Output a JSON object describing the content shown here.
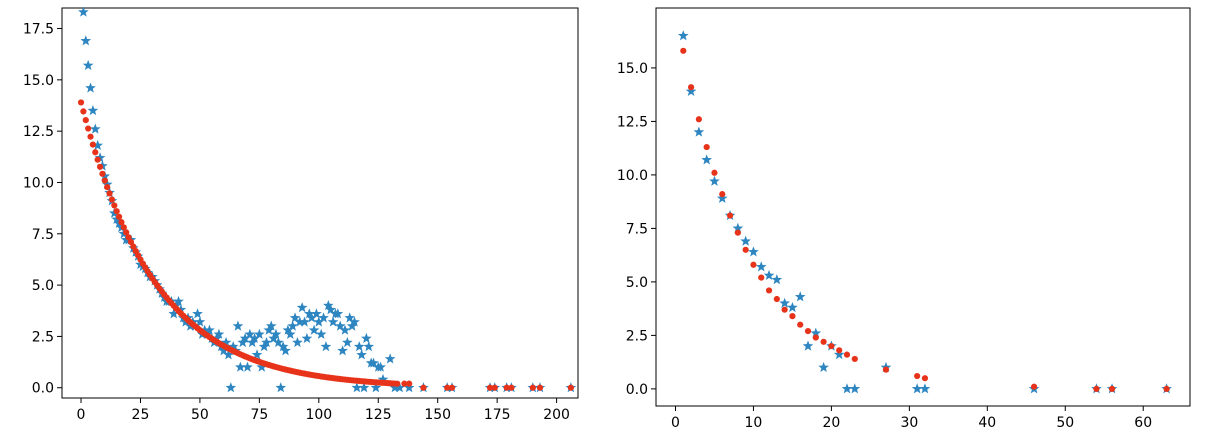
{
  "colors": {
    "series_a": "#2e86c1",
    "series_b": "#e8331b"
  },
  "chart_data": [
    {
      "type": "scatter",
      "xlim": [
        -8,
        209
      ],
      "ylim": [
        -0.5,
        18.5
      ],
      "xticks": [
        0,
        25,
        50,
        75,
        100,
        125,
        150,
        175,
        200
      ],
      "yticks": [
        0.0,
        2.5,
        5.0,
        7.5,
        10.0,
        12.5,
        15.0,
        17.5
      ],
      "xtick_labels": [
        "0",
        "25",
        "50",
        "75",
        "100",
        "125",
        "150",
        "175",
        "200"
      ],
      "ytick_labels": [
        "0.0",
        "2.5",
        "5.0",
        "7.5",
        "10.0",
        "12.5",
        "15.0",
        "17.5"
      ],
      "series": [
        {
          "marker": "star",
          "color": "#2e86c1",
          "points": [
            [
              1,
              18.3
            ],
            [
              2,
              16.9
            ],
            [
              3,
              15.7
            ],
            [
              4,
              14.6
            ],
            [
              5,
              13.5
            ],
            [
              6,
              12.6
            ],
            [
              7,
              11.8
            ],
            [
              8,
              11.2
            ],
            [
              9,
              10.8
            ],
            [
              10,
              10.3
            ],
            [
              11,
              9.9
            ],
            [
              12,
              9.5
            ],
            [
              13,
              9.1
            ],
            [
              14,
              8.5
            ],
            [
              15,
              8.2
            ],
            [
              16,
              8.0
            ],
            [
              17,
              7.8
            ],
            [
              18,
              7.5
            ],
            [
              19,
              7.2
            ],
            [
              20,
              7.2
            ],
            [
              21,
              7.2
            ],
            [
              22,
              6.8
            ],
            [
              23,
              6.6
            ],
            [
              24,
              6.4
            ],
            [
              25,
              6.0
            ],
            [
              26,
              5.9
            ],
            [
              27,
              5.8
            ],
            [
              28,
              5.6
            ],
            [
              29,
              5.4
            ],
            [
              30,
              5.4
            ],
            [
              31,
              5.2
            ],
            [
              32,
              5.0
            ],
            [
              33,
              4.8
            ],
            [
              34,
              4.6
            ],
            [
              35,
              4.4
            ],
            [
              36,
              4.2
            ],
            [
              37,
              4.2
            ],
            [
              38,
              4.2
            ],
            [
              39,
              3.6
            ],
            [
              40,
              4.0
            ],
            [
              41,
              4.2
            ],
            [
              42,
              3.8
            ],
            [
              43,
              3.4
            ],
            [
              44,
              3.2
            ],
            [
              45,
              3.4
            ],
            [
              46,
              3.0
            ],
            [
              47,
              3.2
            ],
            [
              48,
              3.0
            ],
            [
              49,
              3.6
            ],
            [
              50,
              3.2
            ],
            [
              51,
              2.6
            ],
            [
              52,
              2.8
            ],
            [
              53,
              2.6
            ],
            [
              54,
              2.8
            ],
            [
              55,
              2.4
            ],
            [
              56,
              2.2
            ],
            [
              57,
              2.4
            ],
            [
              58,
              2.6
            ],
            [
              59,
              2.0
            ],
            [
              60,
              1.8
            ],
            [
              61,
              2.2
            ],
            [
              62,
              1.6
            ],
            [
              63,
              0.0
            ],
            [
              64,
              2.0
            ],
            [
              65,
              1.8
            ],
            [
              66,
              3.0
            ],
            [
              67,
              1.0
            ],
            [
              68,
              2.2
            ],
            [
              69,
              2.4
            ],
            [
              70,
              1.0
            ],
            [
              71,
              2.6
            ],
            [
              72,
              2.2
            ],
            [
              73,
              2.4
            ],
            [
              74,
              1.6
            ],
            [
              75,
              2.6
            ],
            [
              76,
              1.0
            ],
            [
              77,
              2.0
            ],
            [
              78,
              2.2
            ],
            [
              79,
              2.8
            ],
            [
              80,
              3.0
            ],
            [
              81,
              2.4
            ],
            [
              82,
              2.6
            ],
            [
              83,
              2.2
            ],
            [
              84,
              0.0
            ],
            [
              85,
              2.0
            ],
            [
              86,
              1.8
            ],
            [
              87,
              2.8
            ],
            [
              88,
              2.6
            ],
            [
              89,
              3.0
            ],
            [
              90,
              3.4
            ],
            [
              91,
              2.2
            ],
            [
              92,
              3.2
            ],
            [
              93,
              3.9
            ],
            [
              94,
              3.2
            ],
            [
              95,
              2.4
            ],
            [
              96,
              3.6
            ],
            [
              97,
              3.4
            ],
            [
              98,
              2.8
            ],
            [
              99,
              3.6
            ],
            [
              100,
              3.2
            ],
            [
              101,
              2.6
            ],
            [
              102,
              3.4
            ],
            [
              103,
              2.0
            ],
            [
              104,
              4.0
            ],
            [
              105,
              3.8
            ],
            [
              106,
              3.2
            ],
            [
              107,
              3.6
            ],
            [
              108,
              3.6
            ],
            [
              109,
              3.0
            ],
            [
              110,
              1.8
            ],
            [
              111,
              2.8
            ],
            [
              112,
              2.2
            ],
            [
              113,
              3.4
            ],
            [
              114,
              3.0
            ],
            [
              115,
              3.2
            ],
            [
              116,
              0.0
            ],
            [
              117,
              2.0
            ],
            [
              118,
              1.6
            ],
            [
              119,
              0.0
            ],
            [
              120,
              2.4
            ],
            [
              121,
              2.0
            ],
            [
              122,
              1.2
            ],
            [
              123,
              1.2
            ],
            [
              124,
              0.0
            ],
            [
              125,
              1.0
            ],
            [
              126,
              1.0
            ],
            [
              127,
              0.4
            ],
            [
              130,
              1.4
            ],
            [
              132,
              0.0
            ],
            [
              134,
              0.0
            ],
            [
              138,
              0.0
            ],
            [
              144,
              0.0
            ],
            [
              154,
              0.0
            ],
            [
              156,
              0.0
            ],
            [
              172,
              0.0
            ],
            [
              174,
              0.0
            ],
            [
              179,
              0.0
            ],
            [
              181,
              0.0
            ],
            [
              190,
              0.0
            ],
            [
              193,
              0.0
            ],
            [
              206,
              0.0
            ]
          ]
        },
        {
          "marker": "dot",
          "color": "#e8331b",
          "curve": {
            "a": 13.9,
            "k": 0.032,
            "xmin": 0,
            "xmax": 133
          },
          "extra_points": [
            [
              136,
              0.2
            ],
            [
              138,
              0.2
            ],
            [
              144,
              0.0
            ],
            [
              154,
              0.0
            ],
            [
              156,
              0.0
            ],
            [
              172,
              0.0
            ],
            [
              174,
              0.0
            ],
            [
              179,
              0.0
            ],
            [
              181,
              0.0
            ],
            [
              190,
              0.0
            ],
            [
              193,
              0.0
            ],
            [
              206,
              0.0
            ]
          ]
        }
      ]
    },
    {
      "type": "scatter",
      "xlim": [
        -2.5,
        66
      ],
      "ylim": [
        -0.8,
        17.8
      ],
      "xticks": [
        0,
        10,
        20,
        30,
        40,
        50,
        60
      ],
      "yticks": [
        0.0,
        2.5,
        5.0,
        7.5,
        10.0,
        12.5,
        15.0
      ],
      "xtick_labels": [
        "0",
        "10",
        "20",
        "30",
        "40",
        "50",
        "60"
      ],
      "ytick_labels": [
        "0.0",
        "2.5",
        "5.0",
        "7.5",
        "10.0",
        "12.5",
        "15.0"
      ],
      "series": [
        {
          "marker": "star",
          "color": "#2e86c1",
          "points": [
            [
              1,
              16.5
            ],
            [
              2,
              13.9
            ],
            [
              3,
              12.0
            ],
            [
              4,
              10.7
            ],
            [
              5,
              9.7
            ],
            [
              6,
              8.9
            ],
            [
              7,
              8.1
            ],
            [
              8,
              7.5
            ],
            [
              9,
              6.9
            ],
            [
              10,
              6.4
            ],
            [
              11,
              5.7
            ],
            [
              12,
              5.3
            ],
            [
              13,
              5.1
            ],
            [
              14,
              4.0
            ],
            [
              15,
              3.8
            ],
            [
              16,
              4.3
            ],
            [
              17,
              2.0
            ],
            [
              18,
              2.6
            ],
            [
              19,
              1.0
            ],
            [
              20,
              2.0
            ],
            [
              21,
              1.6
            ],
            [
              22,
              0.0
            ],
            [
              23,
              0.0
            ],
            [
              27,
              1.0
            ],
            [
              31,
              0.0
            ],
            [
              32,
              0.0
            ],
            [
              46,
              0.0
            ],
            [
              54,
              0.0
            ],
            [
              56,
              0.0
            ],
            [
              63,
              0.0
            ]
          ]
        },
        {
          "marker": "dot",
          "color": "#e8331b",
          "points": [
            [
              1,
              15.8
            ],
            [
              2,
              14.1
            ],
            [
              3,
              12.6
            ],
            [
              4,
              11.3
            ],
            [
              5,
              10.1
            ],
            [
              6,
              9.1
            ],
            [
              7,
              8.1
            ],
            [
              8,
              7.3
            ],
            [
              9,
              6.5
            ],
            [
              10,
              5.8
            ],
            [
              11,
              5.2
            ],
            [
              12,
              4.6
            ],
            [
              13,
              4.2
            ],
            [
              14,
              3.7
            ],
            [
              15,
              3.4
            ],
            [
              16,
              3.0
            ],
            [
              17,
              2.7
            ],
            [
              18,
              2.4
            ],
            [
              19,
              2.2
            ],
            [
              20,
              2.0
            ],
            [
              21,
              1.8
            ],
            [
              22,
              1.6
            ],
            [
              23,
              1.4
            ],
            [
              27,
              0.9
            ],
            [
              31,
              0.6
            ],
            [
              32,
              0.5
            ],
            [
              46,
              0.1
            ],
            [
              54,
              0.0
            ],
            [
              56,
              0.0
            ],
            [
              63,
              0.0
            ]
          ]
        }
      ]
    }
  ]
}
